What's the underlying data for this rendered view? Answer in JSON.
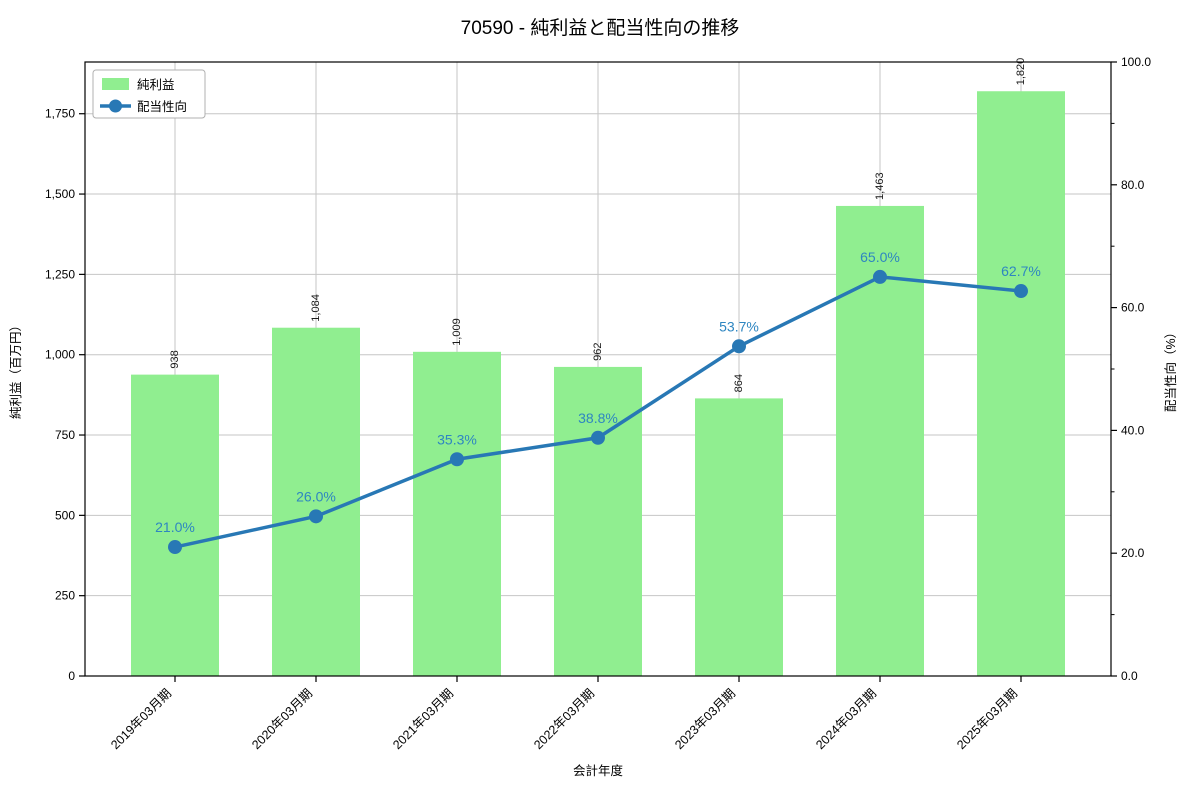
{
  "title": "70590 - 純利益と配当性向の推移",
  "chart_data": {
    "type": "bar",
    "combo": "bar+line",
    "title": "70590 - 純利益と配当性向の推移",
    "xlabel": "会計年度",
    "ylabel_left": "純利益（百万円）",
    "ylabel_right": "配当性向（%）",
    "categories": [
      "2019年03月期",
      "2020年03月期",
      "2021年03月期",
      "2022年03月期",
      "2023年03月期",
      "2024年03月期",
      "2025年03月期"
    ],
    "series": [
      {
        "name": "純利益",
        "type": "bar",
        "axis": "left",
        "color": "#90ee90",
        "values": [
          938,
          1084,
          1009,
          962,
          864,
          1463,
          1820
        ],
        "value_labels": [
          "938",
          "1,084",
          "1,009",
          "962",
          "864",
          "1,463",
          "1,820"
        ]
      },
      {
        "name": "配当性向",
        "type": "line",
        "axis": "right",
        "color": "#2878b5",
        "label_color": "#2e86c1",
        "values": [
          21.0,
          26.0,
          35.3,
          38.8,
          53.7,
          65.0,
          62.7
        ],
        "value_labels": [
          "21.0%",
          "26.0%",
          "35.3%",
          "38.8%",
          "53.7%",
          "65.0%",
          "62.7%"
        ]
      }
    ],
    "ylim_left": [
      0,
      1911
    ],
    "yticks_left_values": [
      0,
      250,
      500,
      750,
      1000,
      1250,
      1500,
      1750
    ],
    "yticks_left_labels": [
      "0",
      "250",
      "500",
      "750",
      "1,000",
      "1,250",
      "1,500",
      "1,750"
    ],
    "ylim_right": [
      0,
      100
    ],
    "yticks_right_values": [
      0,
      20,
      40,
      60,
      80,
      100
    ],
    "yticks_right_labels": [
      "0.0",
      "20.0",
      "40.0",
      "60.0",
      "80.0",
      "100.0"
    ],
    "yticks_right_minor": [
      10,
      30,
      50,
      70,
      90
    ],
    "grid": true,
    "grid_color": "#c6c6c6",
    "legend_position": "upper-left",
    "legend_entries": [
      "純利益",
      "配当性向"
    ]
  }
}
